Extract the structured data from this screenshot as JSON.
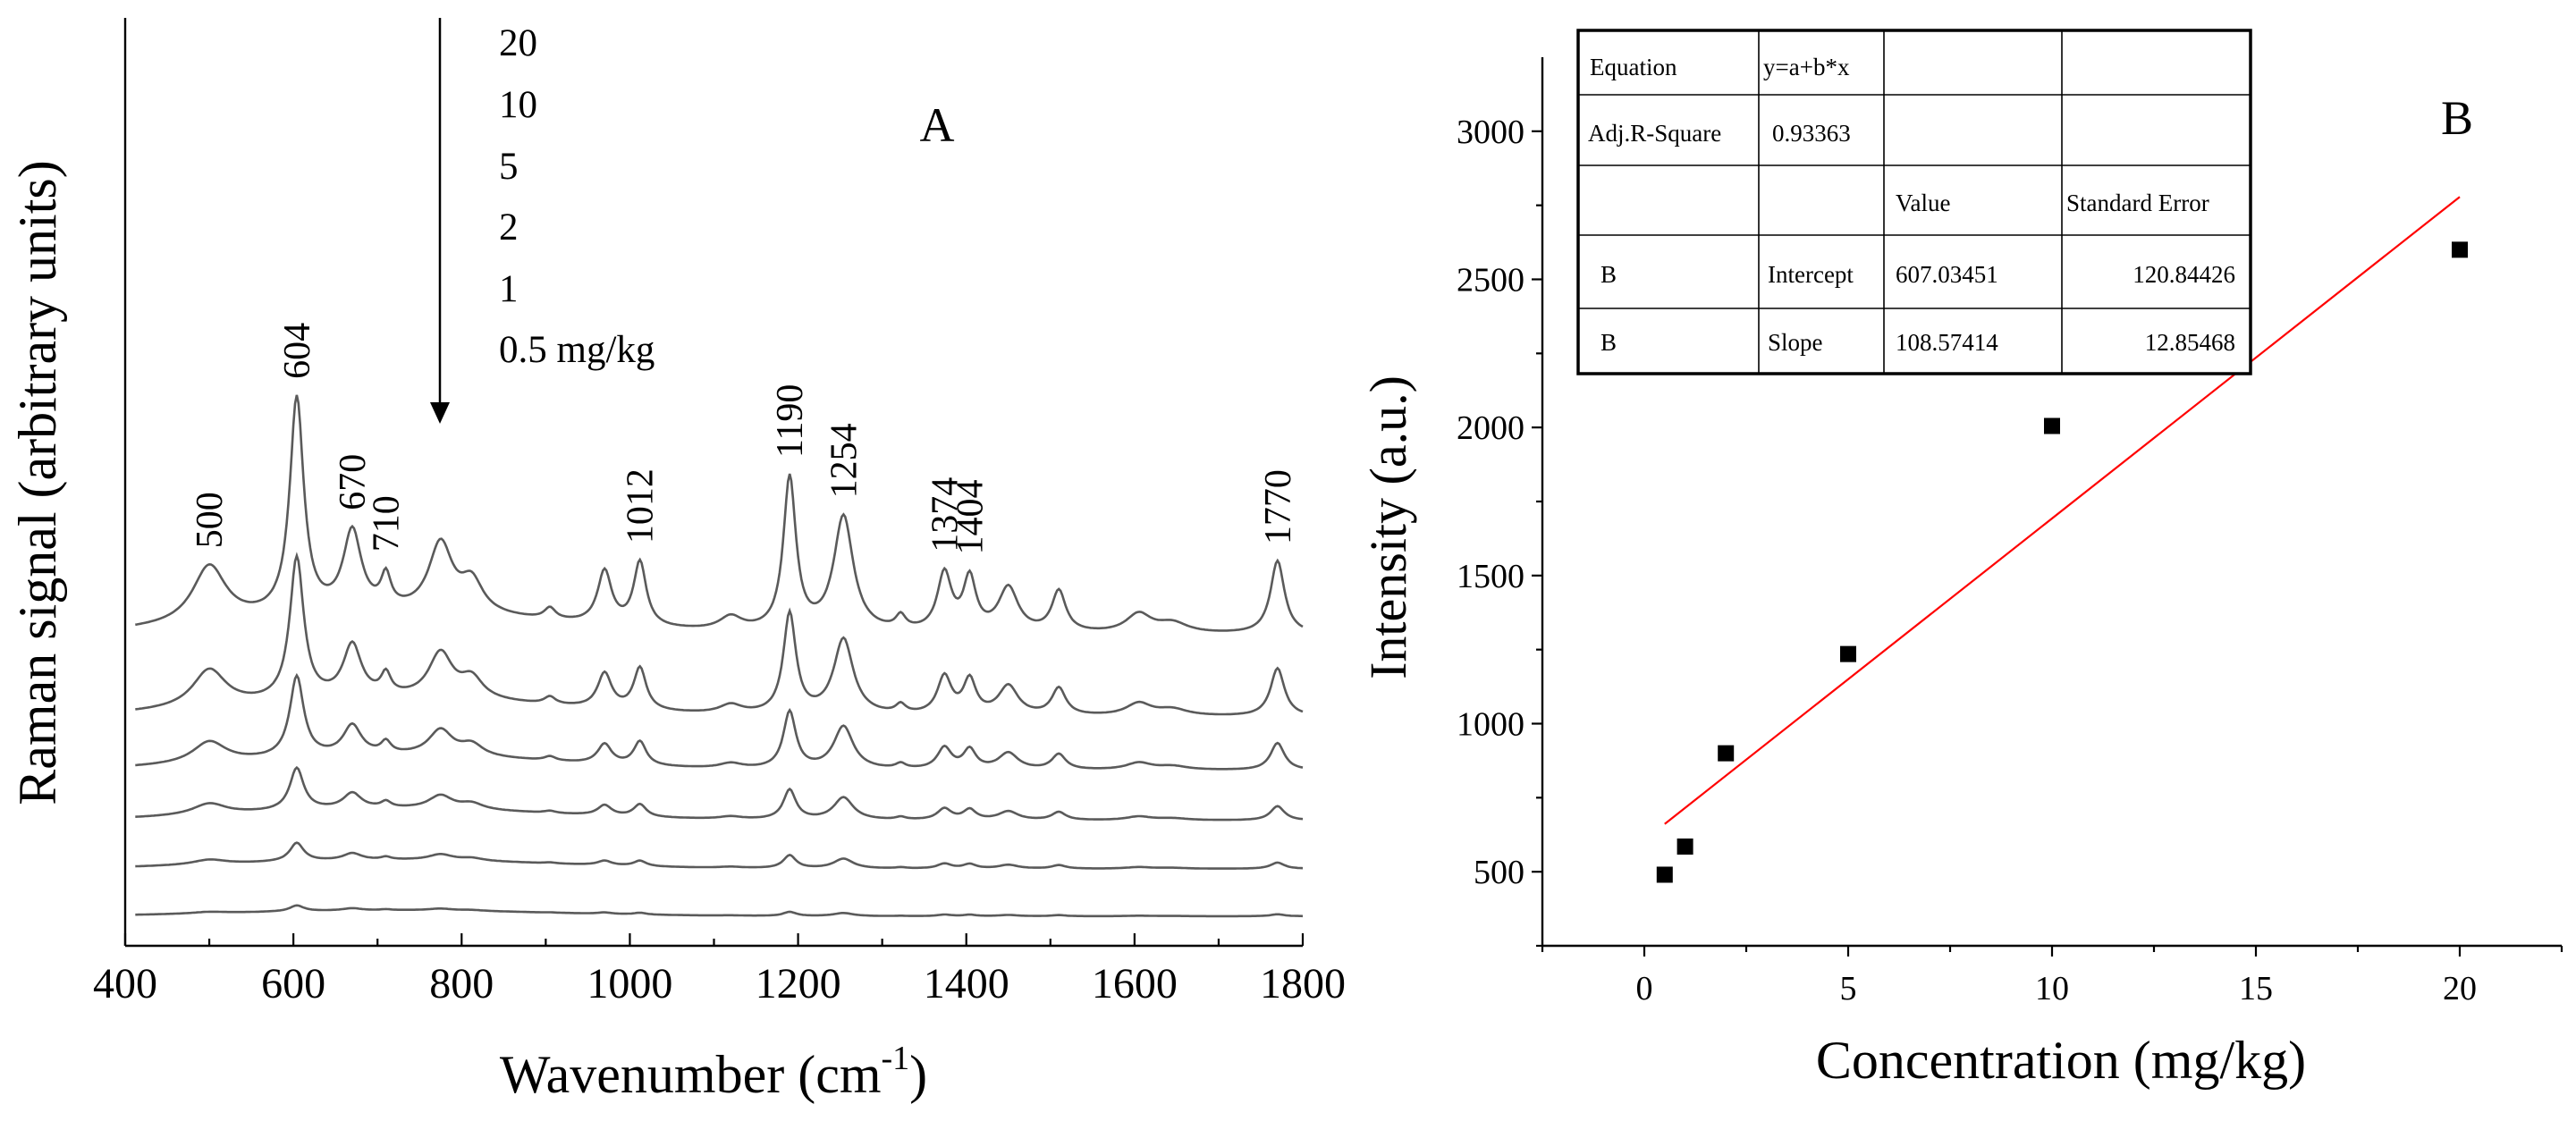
{
  "chart_data": [
    {
      "panel_label": "A",
      "type": "line",
      "xlabel": "Wavenumber (cm",
      "xlabel_sup": "-1",
      "xlabel_close": ")",
      "ylabel": "Raman signal (arbitrary units)",
      "xlim": [
        400,
        1800
      ],
      "x_ticks": [
        "400",
        "600",
        "800",
        "1000",
        "1200",
        "1400",
        "1600",
        "1800"
      ],
      "arrow_note": "intensity decreases from top to bottom spectrum",
      "legend": [
        "20",
        "10",
        "5",
        "2",
        "1",
        "0.5 mg/kg"
      ],
      "series": [
        {
          "name": "20",
          "baseline": 1.0
        },
        {
          "name": "10",
          "baseline": 0.87
        },
        {
          "name": "5",
          "baseline": 0.72
        },
        {
          "name": "2",
          "baseline": 0.58
        },
        {
          "name": "1",
          "baseline": 0.44
        },
        {
          "name": "0.5 mg/kg",
          "baseline": 0.3
        }
      ],
      "peaks": [
        {
          "label": "500",
          "center": 500,
          "width": 24,
          "h20": 0.52
        },
        {
          "label": "604",
          "center": 604,
          "width": 10,
          "h20": 1.95
        },
        {
          "label": "670",
          "center": 670,
          "width": 13,
          "h20": 0.72
        },
        {
          "label": "710",
          "center": 710,
          "width": 7,
          "h20": 0.28
        },
        {
          "label": "",
          "center": 775,
          "width": 17,
          "h20": 0.62
        },
        {
          "label": "",
          "center": 812,
          "width": 16,
          "h20": 0.28
        },
        {
          "label": "",
          "center": 905,
          "width": 8,
          "h20": 0.1
        },
        {
          "label": "",
          "center": 970,
          "width": 10,
          "h20": 0.48
        },
        {
          "label": "1012",
          "center": 1012,
          "width": 9,
          "h20": 0.58
        },
        {
          "label": "",
          "center": 1120,
          "width": 16,
          "h20": 0.12
        },
        {
          "label": "1190",
          "center": 1190,
          "width": 9,
          "h20": 1.38
        },
        {
          "label": "1254",
          "center": 1254,
          "width": 14,
          "h20": 1.04
        },
        {
          "label": "",
          "center": 1322,
          "width": 7,
          "h20": 0.12
        },
        {
          "label": "1374",
          "center": 1374,
          "width": 10,
          "h20": 0.52
        },
        {
          "label": "1404",
          "center": 1404,
          "width": 9,
          "h20": 0.47
        },
        {
          "label": "",
          "center": 1450,
          "width": 14,
          "h20": 0.4
        },
        {
          "label": "",
          "center": 1510,
          "width": 10,
          "h20": 0.37
        },
        {
          "label": "",
          "center": 1605,
          "width": 18,
          "h20": 0.17
        },
        {
          "label": "",
          "center": 1645,
          "width": 22,
          "h20": 0.09
        },
        {
          "label": "1770",
          "center": 1770,
          "width": 10,
          "h20": 0.66
        }
      ]
    },
    {
      "panel_label": "B",
      "type": "scatter",
      "xlabel": "Concentration (mg/kg)",
      "ylabel": "Intensity (a.u.)",
      "xlim": [
        -2.5,
        22.5
      ],
      "ylim": [
        250,
        3250
      ],
      "x_ticks": [
        "0",
        "5",
        "10",
        "15",
        "20"
      ],
      "y_ticks": [
        "500",
        "1000",
        "1500",
        "2000",
        "2500",
        "3000"
      ],
      "points": [
        {
          "x": 0.5,
          "y": 490
        },
        {
          "x": 1,
          "y": 585
        },
        {
          "x": 2,
          "y": 900
        },
        {
          "x": 5,
          "y": 1235
        },
        {
          "x": 10,
          "y": 2005
        },
        {
          "x": 20,
          "y": 2600
        }
      ],
      "fit": {
        "intercept": 607.03451,
        "slope": 108.57414,
        "x_range": [
          0.5,
          20
        ],
        "color": "#ff0000"
      },
      "table": [
        [
          "Equation",
          "y=a+b*x",
          "",
          ""
        ],
        [
          "Adj.R-Square",
          "0.93363",
          "",
          ""
        ],
        [
          "",
          "",
          "Value",
          "Standard Error"
        ],
        [
          "B",
          "Intercept",
          "607.03451",
          "120.84426"
        ],
        [
          "B",
          "Slope",
          "108.57414",
          "12.85468"
        ]
      ]
    }
  ]
}
